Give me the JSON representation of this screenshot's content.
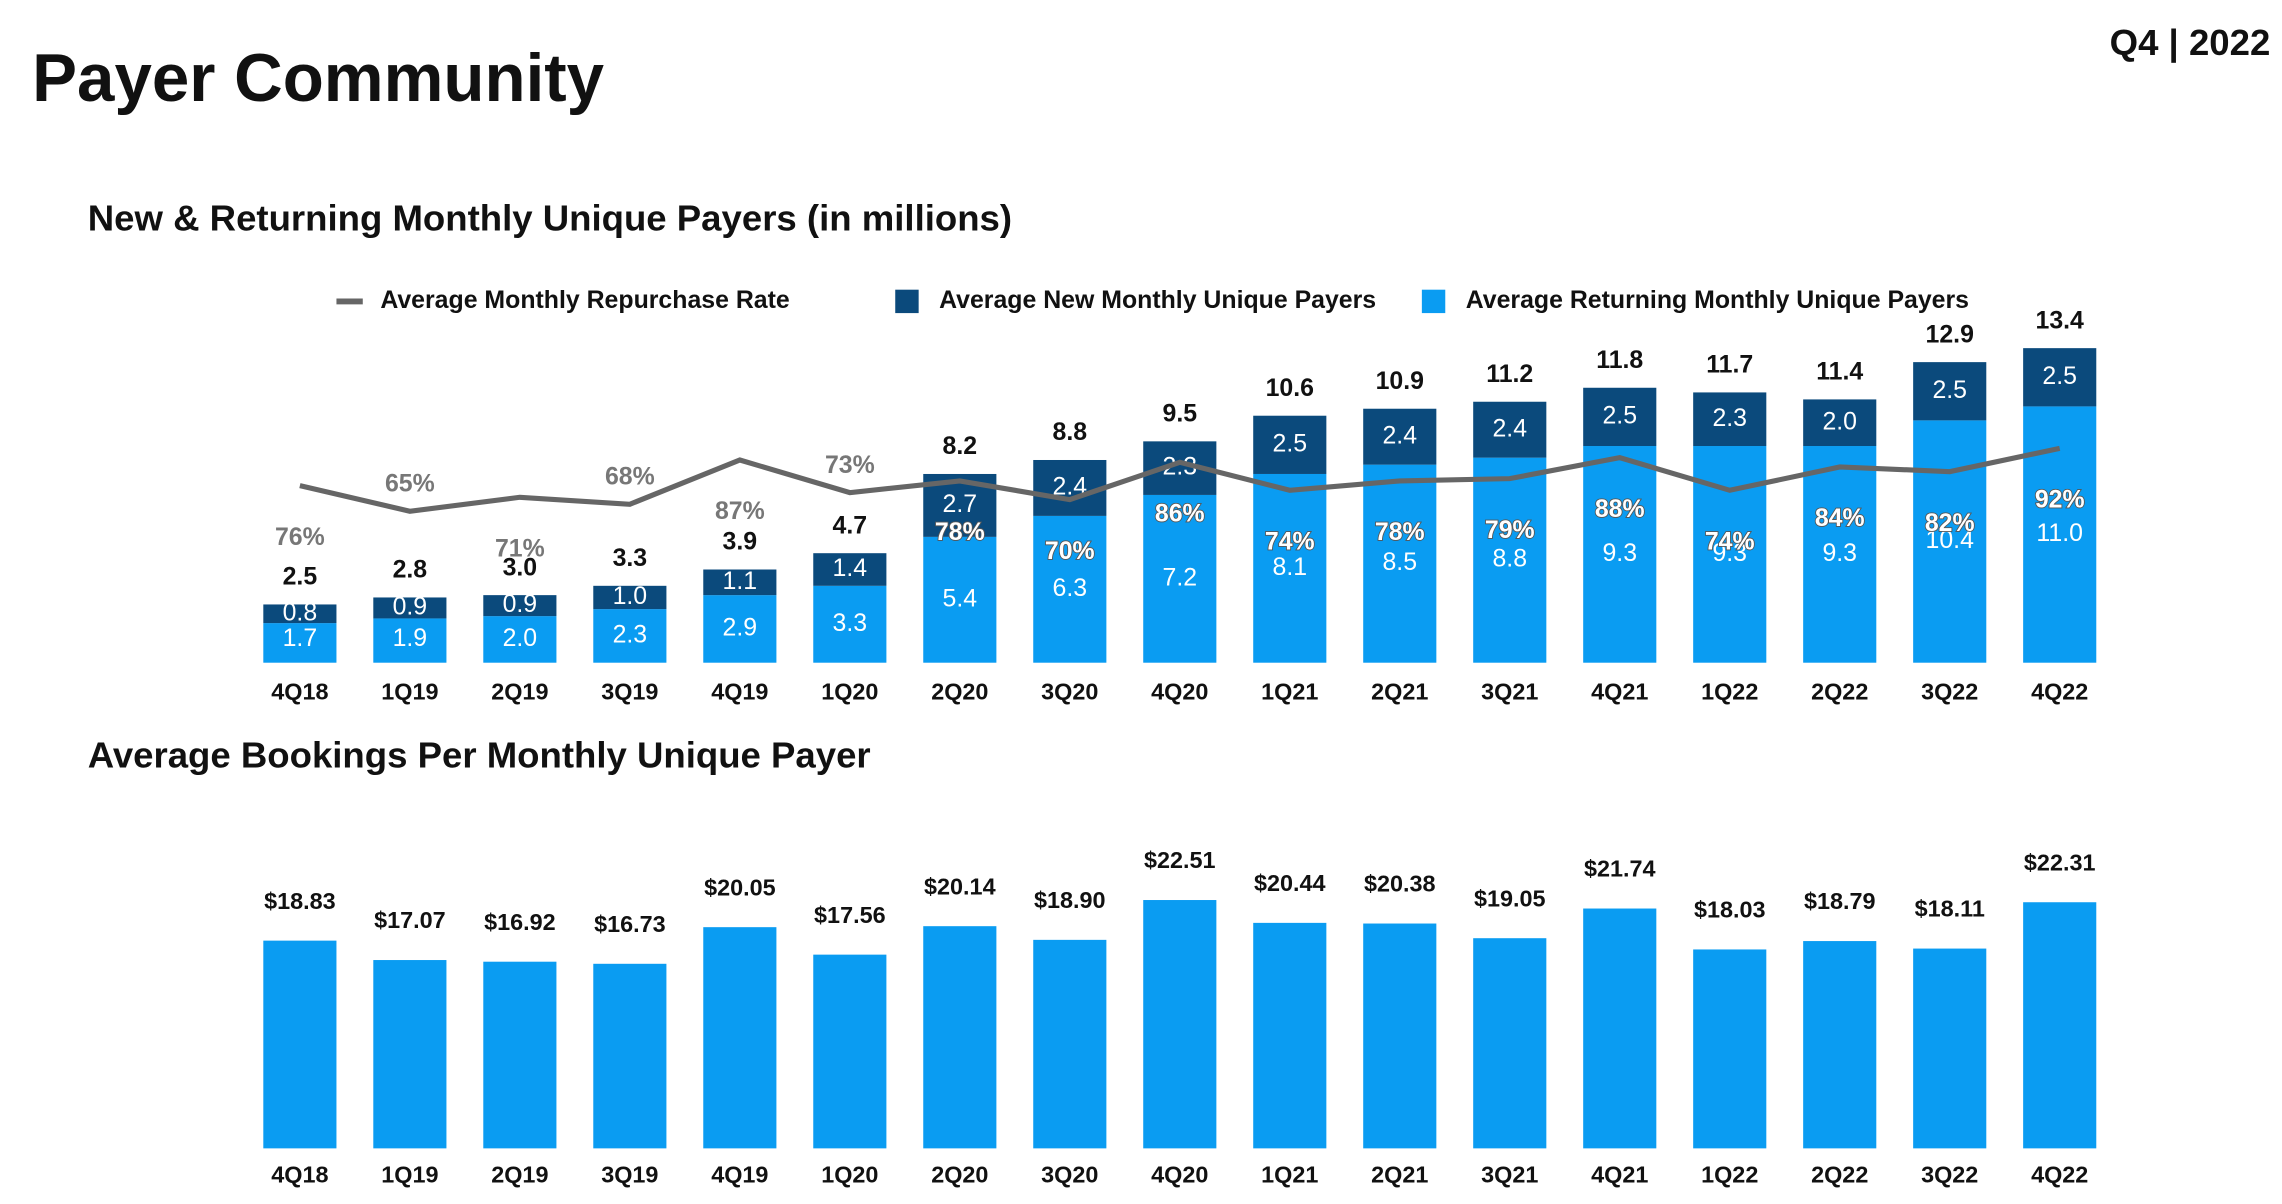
{
  "header": {
    "title": "Payer Community",
    "period": "Q4 | 2022"
  },
  "chart_data": [
    {
      "type": "bar",
      "stacked": true,
      "title": "New & Returning Monthly Unique Payers (in millions)",
      "categories": [
        "4Q18",
        "1Q19",
        "2Q19",
        "3Q19",
        "4Q19",
        "1Q20",
        "2Q20",
        "3Q20",
        "4Q20",
        "1Q21",
        "2Q21",
        "3Q21",
        "4Q21",
        "1Q22",
        "2Q22",
        "3Q22",
        "4Q22"
      ],
      "series": [
        {
          "name": "Average Returning Monthly Unique Payers",
          "color": "#0a9cf2",
          "values": [
            1.7,
            1.9,
            2.0,
            2.3,
            2.9,
            3.3,
            5.4,
            6.3,
            7.2,
            8.1,
            8.5,
            8.8,
            9.3,
            9.3,
            9.3,
            10.4,
            11.0
          ],
          "value_labels": [
            "1.7",
            "1.9",
            "2.0",
            "2.3",
            "2.9",
            "3.3",
            "5.4",
            "6.3",
            "7.2",
            "8.1",
            "8.5",
            "8.8",
            "9.3",
            "9.3",
            "9.3",
            "10.4",
            "11.0"
          ]
        },
        {
          "name": "Average New Monthly Unique Payers",
          "color": "#0b4a7c",
          "values": [
            0.8,
            0.9,
            0.9,
            1.0,
            1.1,
            1.4,
            2.7,
            2.4,
            2.3,
            2.5,
            2.4,
            2.4,
            2.5,
            2.3,
            2.0,
            2.5,
            2.5
          ],
          "value_labels": [
            "0.8",
            "0.9",
            "0.9",
            "1.0",
            "1.1",
            "1.4",
            "2.7",
            "2.4",
            "2.3",
            "2.5",
            "2.4",
            "2.4",
            "2.5",
            "2.3",
            "2.0",
            "2.5",
            "2.5"
          ]
        },
        {
          "name": "Average Monthly Repurchase Rate",
          "type": "line",
          "axis": "y2",
          "color": "#666666",
          "values": [
            76,
            65,
            71,
            68,
            87,
            73,
            78,
            70,
            86,
            74,
            78,
            79,
            88,
            74,
            84,
            82,
            92
          ],
          "value_labels": [
            "76%",
            "65%",
            "71%",
            "68%",
            "87%",
            "73%",
            "78%",
            "70%",
            "86%",
            "74%",
            "78%",
            "79%",
            "88%",
            "74%",
            "84%",
            "82%",
            "92%"
          ]
        }
      ],
      "total_labels": [
        "2.5",
        "2.8",
        "3.0",
        "3.3",
        "3.9",
        "4.7",
        "8.2",
        "8.8",
        "9.5",
        "10.6",
        "10.9",
        "11.2",
        "11.8",
        "11.7",
        "11.4",
        "12.9",
        "13.4"
      ],
      "ylim": [
        0,
        14
      ],
      "y2lim": [
        0,
        140
      ],
      "legend": "top"
    },
    {
      "type": "bar",
      "title": "Average Bookings Per Monthly Unique Payer",
      "categories": [
        "4Q18",
        "1Q19",
        "2Q19",
        "3Q19",
        "4Q19",
        "1Q20",
        "2Q20",
        "3Q20",
        "4Q20",
        "1Q21",
        "2Q21",
        "3Q21",
        "4Q21",
        "1Q22",
        "2Q22",
        "3Q22",
        "4Q22"
      ],
      "values": [
        18.83,
        17.07,
        16.92,
        16.73,
        20.05,
        17.56,
        20.14,
        18.9,
        22.51,
        20.44,
        20.38,
        19.05,
        21.74,
        18.03,
        18.79,
        18.11,
        22.31
      ],
      "value_labels": [
        "$18.83",
        "$17.07",
        "$16.92",
        "$16.73",
        "$20.05",
        "$17.56",
        "$20.14",
        "$18.90",
        "$22.51",
        "$20.44",
        "$20.38",
        "$19.05",
        "$21.74",
        "$18.03",
        "$18.79",
        "$18.11",
        "$22.31"
      ],
      "color": "#0a9cf2",
      "ylim": [
        0,
        24
      ]
    }
  ]
}
